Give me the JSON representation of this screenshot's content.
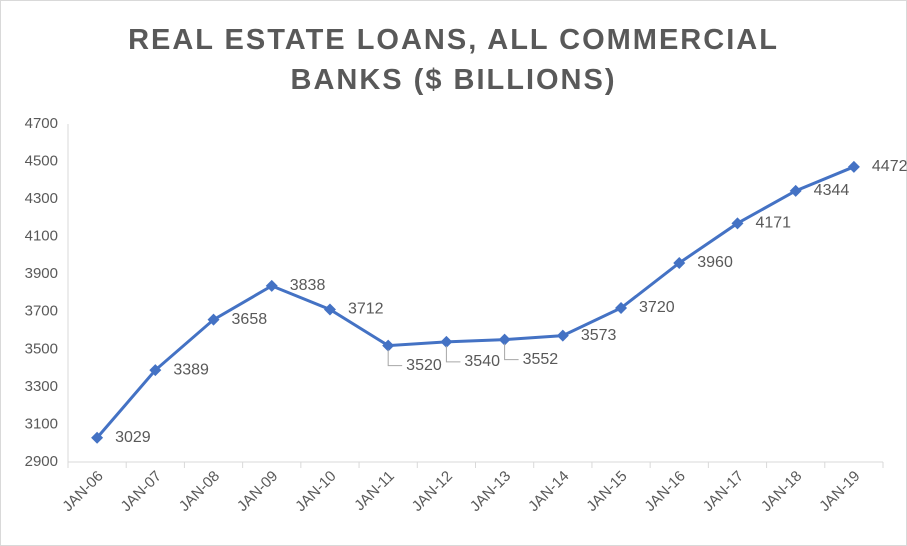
{
  "chart_data": {
    "type": "line",
    "title": "REAL ESTATE LOANS, ALL COMMERCIAL BANKS ($ BILLIONS)",
    "categories": [
      "JAN-06",
      "JAN-07",
      "JAN-08",
      "JAN-09",
      "JAN-10",
      "JAN-11",
      "JAN-12",
      "JAN-13",
      "JAN-14",
      "JAN-15",
      "JAN-16",
      "JAN-17",
      "JAN-18",
      "JAN-19"
    ],
    "values": [
      3029,
      3389,
      3658,
      3838,
      3712,
      3520,
      3540,
      3552,
      3573,
      3720,
      3960,
      4171,
      4344,
      4472
    ],
    "color": "#4472c4",
    "ylim": [
      2900,
      4700
    ],
    "yticks": [
      2900,
      3100,
      3300,
      3500,
      3700,
      3900,
      4100,
      4300,
      4500,
      4700
    ],
    "grid": false
  }
}
